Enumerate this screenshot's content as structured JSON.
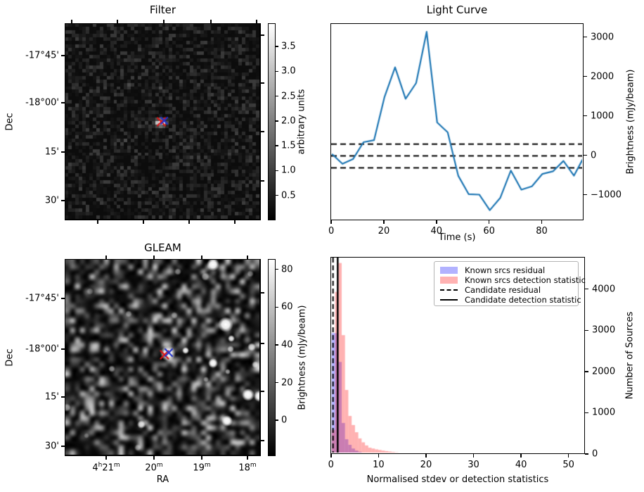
{
  "figure": {
    "background": "#ffffff",
    "text_color": "#000000"
  },
  "chart_data": [
    {
      "id": "filter",
      "type": "heatmap",
      "title": "Filter",
      "xlabel": "",
      "ylabel": "Dec",
      "y_tick_labels": [
        "-17°45'",
        "-18°00'",
        "15'",
        "30'"
      ],
      "colorbar": {
        "label": "arbitrary units",
        "ticks": [
          0.5,
          1.0,
          1.5,
          2.0,
          2.5,
          3.0,
          3.5
        ],
        "vmin": 0.0,
        "vmax": 3.97
      },
      "noise": {
        "seed": 20,
        "grid": 56,
        "style": "dark-pixelated"
      },
      "source_patch": {
        "gx0": 25,
        "gy0": 27,
        "values": [
          [
            0.6,
            1.2,
            1.8,
            1.4,
            0.7
          ],
          [
            0.9,
            3.0,
            3.9,
            3.5,
            1.2
          ],
          [
            0.6,
            1.1,
            1.7,
            1.3,
            0.6
          ]
        ]
      },
      "markers": [
        {
          "name": "candidate-position-red-x",
          "color": "#dd1515"
        },
        {
          "name": "known-source-blue-x",
          "color": "#2233cc"
        }
      ]
    },
    {
      "id": "light_curve",
      "type": "line",
      "title": "Light Curve",
      "xlabel": "Time (s)",
      "ylabel": "Brightness (mJy/beam)",
      "line_color": "#1f77b4",
      "x": [
        0,
        4,
        8,
        12,
        16,
        20,
        24,
        28,
        32,
        36,
        40,
        44,
        48,
        52,
        56,
        60,
        64,
        68,
        72,
        76,
        80,
        84,
        88,
        92,
        96
      ],
      "y": [
        50,
        -200,
        -80,
        350,
        400,
        1500,
        2250,
        1450,
        1850,
        3150,
        850,
        600,
        -500,
        -970,
        -980,
        -1375,
        -1060,
        -370,
        -855,
        -770,
        -455,
        -390,
        -125,
        -500,
        0
      ],
      "dashed_hlines": [
        300,
        0,
        -300
      ],
      "x_ticks": [
        0,
        20,
        40,
        60,
        80
      ],
      "y_ticks": [
        -1000,
        0,
        1000,
        2000,
        3000
      ],
      "xlim": [
        -0.3,
        95.9
      ],
      "ylim": [
        -1650,
        3350
      ]
    },
    {
      "id": "gleam",
      "type": "heatmap",
      "title": "GLEAM",
      "xlabel": "RA",
      "ylabel": "Dec",
      "x_tick_labels": [
        {
          "segments": [
            [
              "4",
              false
            ],
            [
              "h",
              true
            ],
            [
              "21",
              false
            ],
            [
              "m",
              true
            ]
          ]
        },
        {
          "segments": [
            [
              "20",
              false
            ],
            [
              "m",
              true
            ]
          ]
        },
        {
          "segments": [
            [
              "19",
              false
            ],
            [
              "m",
              true
            ]
          ]
        },
        {
          "segments": [
            [
              "18",
              false
            ],
            [
              "m",
              true
            ]
          ]
        }
      ],
      "y_tick_labels": [
        "-17°45'",
        "-18°00'",
        "15'",
        "30'"
      ],
      "colorbar": {
        "label": "Brightness (mJy/beam)",
        "ticks": [
          0,
          20,
          40,
          60,
          80
        ],
        "vmin": -19.0,
        "vmax": 85.5
      },
      "noise": {
        "seed": 5,
        "grid": 40,
        "style": "smooth-blurred"
      },
      "blobs": [
        [
          210,
          7,
          9,
          1.0
        ],
        [
          199,
          24,
          6,
          0.5
        ],
        [
          160,
          17,
          5,
          0.45
        ],
        [
          263,
          20,
          5,
          0.4
        ],
        [
          35,
          45,
          5,
          0.3
        ],
        [
          90,
          77,
          5,
          0.4
        ],
        [
          155,
          79,
          5,
          0.4
        ],
        [
          228,
          92,
          11,
          1.0
        ],
        [
          236,
          112,
          5,
          0.9
        ],
        [
          146,
          133,
          11,
          1.0
        ],
        [
          171,
          129,
          5,
          0.95
        ],
        [
          235,
          127,
          5,
          0.65
        ],
        [
          265,
          124,
          6,
          0.8
        ],
        [
          210,
          147,
          7,
          1.0
        ],
        [
          270,
          149,
          5,
          0.65
        ],
        [
          231,
          159,
          4,
          0.55
        ],
        [
          66,
          155,
          5,
          0.5
        ],
        [
          200,
          170,
          4,
          0.45
        ],
        [
          2,
          210,
          6,
          0.55
        ],
        [
          260,
          192,
          9,
          1.0
        ],
        [
          276,
          194,
          8,
          1.0
        ],
        [
          230,
          229,
          8,
          1.0
        ],
        [
          108,
          234,
          6,
          0.85
        ],
        [
          103,
          267,
          5,
          0.45
        ],
        [
          30,
          250,
          4,
          0.3
        ]
      ],
      "markers": [
        {
          "name": "candidate-position-red-x",
          "color": "#dd1515"
        },
        {
          "name": "known-source-blue-x",
          "color": "#2233cc"
        }
      ]
    },
    {
      "id": "histogram",
      "type": "bar",
      "title": "",
      "xlabel": "Normalised stdev or detection statistics",
      "ylabel": "Number of Sources",
      "bin_start": 0.0,
      "bin_width": 0.7,
      "series": [
        {
          "name": "Known srcs residual",
          "color": "#0000ff",
          "alpha": 0.3,
          "values": [
            2950,
            2950,
            2250,
            770,
            375,
            240,
            150,
            100,
            70,
            52,
            40,
            32,
            26,
            21,
            17,
            14,
            12,
            10,
            9,
            8,
            7,
            6,
            5,
            4,
            4,
            3,
            3,
            2,
            2,
            2,
            1,
            15
          ]
        },
        {
          "name": "Known srcs detection statistic",
          "color": "#ff0000",
          "alpha": 0.3,
          "values": [
            600,
            3950,
            4650,
            2900,
            1570,
            940,
            720,
            545,
            395,
            300,
            225,
            170,
            150,
            130,
            115,
            100,
            88,
            77,
            67,
            58,
            50,
            44,
            38,
            33,
            29,
            25,
            22,
            19,
            17,
            25,
            13,
            12,
            11,
            10,
            9,
            18,
            8,
            7,
            7,
            16,
            6,
            5,
            5,
            20,
            4,
            4,
            4,
            3,
            3,
            3,
            3,
            3,
            2,
            2,
            2,
            2,
            2,
            2,
            2,
            2,
            2,
            2,
            2,
            2,
            2,
            2,
            2,
            2,
            2,
            2,
            2,
            35
          ]
        }
      ],
      "vlines": [
        {
          "name": "Candidate residual",
          "style": "dashed",
          "x": 0.28
        },
        {
          "name": "Candidate detection statistic",
          "style": "solid",
          "x": 1.26
        }
      ],
      "legend": [
        {
          "label": "Known srcs residual",
          "swatch": "patch",
          "color": "rgba(0,0,255,0.3)"
        },
        {
          "label": "Known srcs detection statistic",
          "swatch": "patch",
          "color": "rgba(255,0,0,0.3)"
        },
        {
          "label": "Candidate residual",
          "swatch": "dashed-line",
          "color": "#000000"
        },
        {
          "label": "Candidate detection statistic",
          "swatch": "solid-line",
          "color": "#000000"
        }
      ],
      "x_ticks": [
        0,
        10,
        20,
        30,
        40,
        50
      ],
      "y_ticks": [
        0,
        1000,
        2000,
        3000,
        4000
      ],
      "xlim": [
        -0.12,
        53.45
      ],
      "ylim": [
        0,
        4780
      ]
    }
  ]
}
